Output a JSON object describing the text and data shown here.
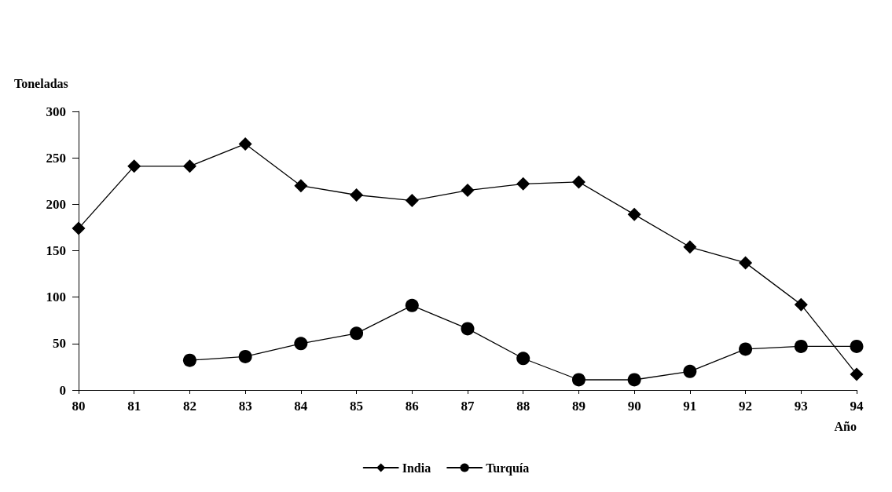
{
  "chart_data": {
    "type": "line",
    "ylabel": "Toneladas",
    "xlabel": "Año",
    "categories": [
      "80",
      "81",
      "82",
      "83",
      "84",
      "85",
      "86",
      "87",
      "88",
      "89",
      "90",
      "91",
      "92",
      "93",
      "94"
    ],
    "series": [
      {
        "name": "India",
        "color": "#000000",
        "marker": "diamond",
        "values": [
          174,
          241,
          241,
          265,
          220,
          210,
          204,
          215,
          222,
          224,
          189,
          154,
          137,
          92,
          17
        ]
      },
      {
        "name": "Turquía",
        "color": "#000000",
        "marker": "circle",
        "values": [
          null,
          null,
          32,
          36,
          50,
          61,
          91,
          66,
          34,
          11,
          11,
          20,
          44,
          47,
          47
        ]
      }
    ],
    "ylim": [
      0,
      300
    ],
    "yticks": [
      0,
      50,
      100,
      150,
      200,
      250,
      300
    ],
    "grid": false,
    "legend": "bottom",
    "line_style": "solid"
  }
}
